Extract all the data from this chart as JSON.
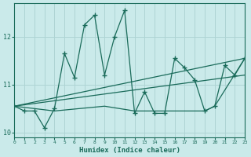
{
  "xlabel": "Humidex (Indice chaleur)",
  "xlim": [
    0,
    23
  ],
  "ylim": [
    9.9,
    12.7
  ],
  "yticks": [
    10,
    11,
    12
  ],
  "xticks": [
    0,
    1,
    2,
    3,
    4,
    5,
    6,
    7,
    8,
    9,
    10,
    11,
    12,
    13,
    14,
    15,
    16,
    17,
    18,
    19,
    20,
    21,
    22,
    23
  ],
  "bg_color": "#caeaea",
  "grid_color": "#aed4d4",
  "line_color": "#1a6b5a",
  "line1_x": [
    0,
    1,
    2,
    3,
    4,
    5,
    6,
    7,
    8,
    9,
    10,
    11,
    12,
    13,
    14,
    15,
    16,
    17,
    18,
    19,
    20,
    21,
    22,
    23
  ],
  "line1_y": [
    10.55,
    10.45,
    10.45,
    10.1,
    10.5,
    11.65,
    11.15,
    12.25,
    12.45,
    11.2,
    12.0,
    12.55,
    10.4,
    10.85,
    10.4,
    10.4,
    11.55,
    11.35,
    11.1,
    10.45,
    10.55,
    11.4,
    11.2,
    11.55
  ],
  "line2_x": [
    0,
    23
  ],
  "line2_y": [
    10.55,
    11.2
  ],
  "line3_x": [
    0,
    23
  ],
  "line3_y": [
    10.55,
    11.55
  ],
  "line4_x": [
    0,
    4,
    9,
    12,
    14,
    15,
    16,
    19,
    20,
    23
  ],
  "line4_y": [
    10.55,
    10.45,
    10.55,
    10.45,
    10.45,
    10.45,
    10.45,
    10.45,
    10.55,
    11.55
  ]
}
